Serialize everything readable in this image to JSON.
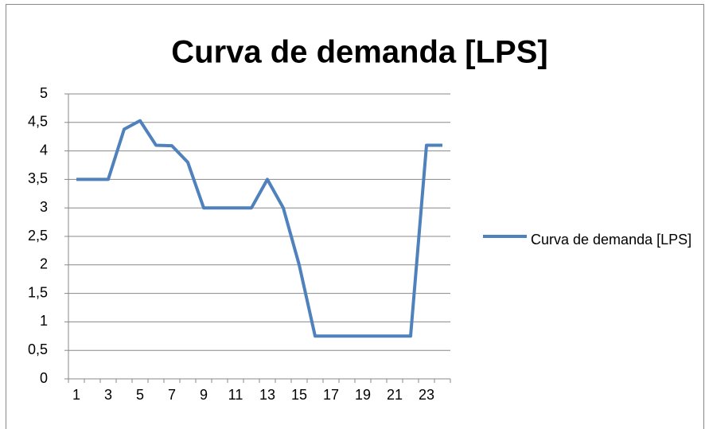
{
  "chart_data": {
    "type": "line",
    "title": "Curva de demanda [LPS]",
    "categories": [
      "1",
      null,
      "3",
      null,
      "5",
      null,
      "7",
      null,
      "9",
      null,
      "11",
      null,
      "13",
      null,
      "15",
      null,
      "17",
      null,
      "19",
      null,
      "21",
      null,
      "23",
      null
    ],
    "series": [
      {
        "name": "Curva de demanda [LPS]",
        "color": "#4f81bd",
        "values": [
          3.5,
          3.5,
          3.5,
          4.38,
          4.53,
          4.1,
          4.09,
          3.8,
          3.0,
          3.0,
          3.0,
          3.0,
          3.5,
          3.0,
          2.0,
          0.75,
          0.75,
          0.75,
          0.75,
          0.75,
          0.75,
          0.75,
          4.1,
          4.1
        ]
      }
    ],
    "ylim": [
      0,
      5
    ],
    "yticks": [
      0,
      {
        "value": 0.5,
        "label": "0,5"
      },
      1,
      {
        "value": 1.5,
        "label": "1,5"
      },
      2,
      {
        "value": 2.5,
        "label": "2,5"
      },
      3,
      {
        "value": 3.5,
        "label": "3,5"
      },
      4,
      {
        "value": 4.5,
        "label": "4,5"
      },
      5
    ],
    "grid": true,
    "legend": "right"
  }
}
